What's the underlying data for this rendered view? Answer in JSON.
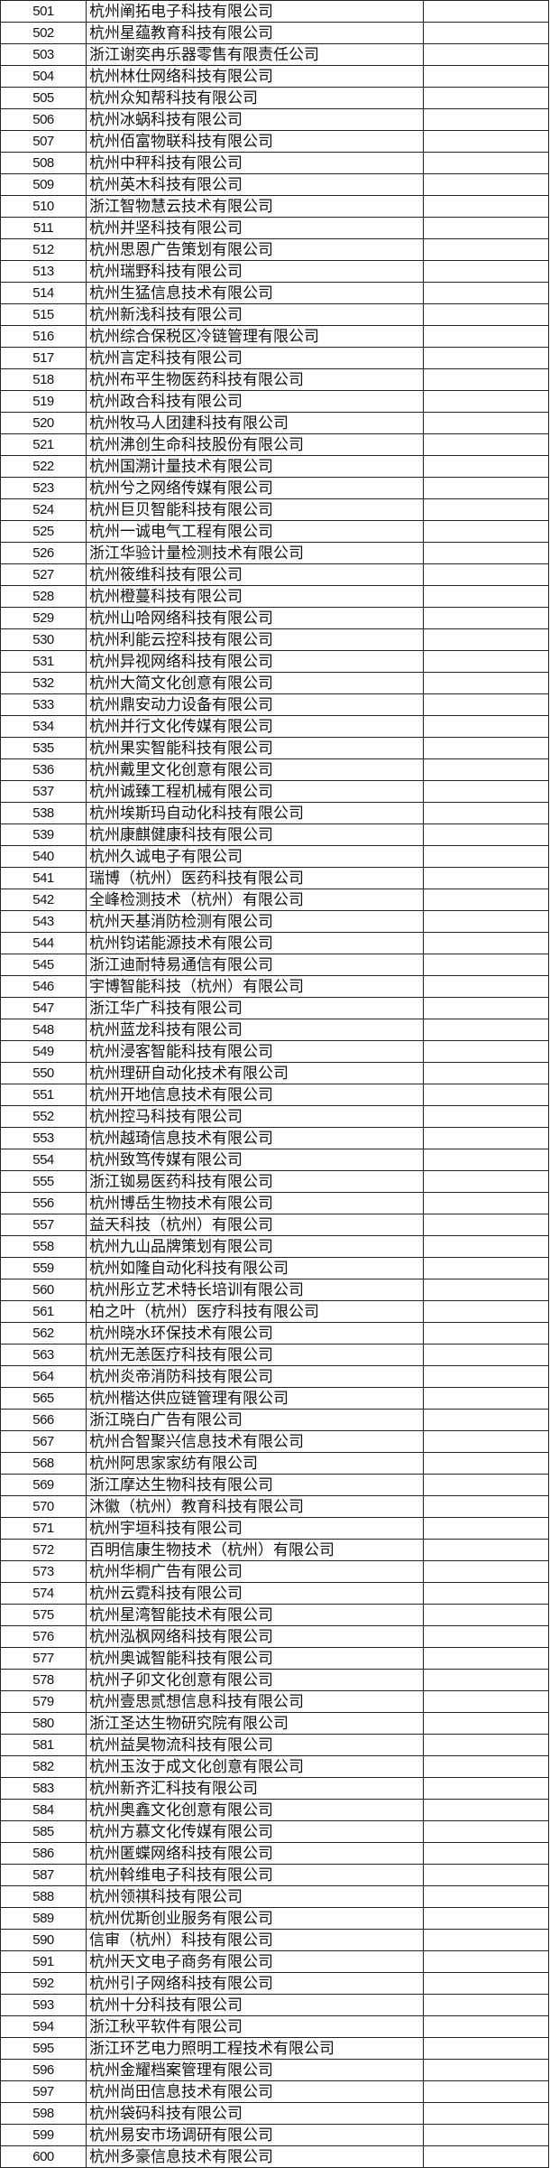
{
  "table": {
    "rows": [
      [
        "501",
        "杭州阐拓电子科技有限公司"
      ],
      [
        "502",
        "杭州星蕴教育科技有限公司"
      ],
      [
        "503",
        "浙江谢奕冉乐器零售有限责任公司"
      ],
      [
        "504",
        "杭州林仕网络科技有限公司"
      ],
      [
        "505",
        "杭州众知帮科技有限公司"
      ],
      [
        "506",
        "杭州冰蜗科技有限公司"
      ],
      [
        "507",
        "杭州佰富物联科技有限公司"
      ],
      [
        "508",
        "杭州中秤科技有限公司"
      ],
      [
        "509",
        "杭州英木科技有限公司"
      ],
      [
        "510",
        "浙江智物慧云技术有限公司"
      ],
      [
        "511",
        "杭州并坚科技有限公司"
      ],
      [
        "512",
        "杭州思恩广告策划有限公司"
      ],
      [
        "513",
        "杭州瑞野科技有限公司"
      ],
      [
        "514",
        "杭州生猛信息技术有限公司"
      ],
      [
        "515",
        "杭州新浅科技有限公司"
      ],
      [
        "516",
        "杭州综合保税区冷链管理有限公司"
      ],
      [
        "517",
        "杭州言定科技有限公司"
      ],
      [
        "518",
        "杭州布平生物医药科技有限公司"
      ],
      [
        "519",
        "杭州政合科技有限公司"
      ],
      [
        "520",
        "杭州牧马人团建科技有限公司"
      ],
      [
        "521",
        "杭州沸创生命科技股份有限公司"
      ],
      [
        "522",
        "杭州国溯计量技术有限公司"
      ],
      [
        "523",
        "杭州兮之网络传媒有限公司"
      ],
      [
        "524",
        "杭州巨贝智能科技有限公司"
      ],
      [
        "525",
        "杭州一诚电气工程有限公司"
      ],
      [
        "526",
        "浙江华验计量检测技术有限公司"
      ],
      [
        "527",
        "杭州筱维科技有限公司"
      ],
      [
        "528",
        "杭州橙蔓科技有限公司"
      ],
      [
        "529",
        "杭州山哈网络科技有限公司"
      ],
      [
        "530",
        "杭州利能云控科技有限公司"
      ],
      [
        "531",
        "杭州异视网络科技有限公司"
      ],
      [
        "532",
        "杭州大简文化创意有限公司"
      ],
      [
        "533",
        "杭州鼎安动力设备有限公司"
      ],
      [
        "534",
        "杭州并行文化传媒有限公司"
      ],
      [
        "535",
        "杭州果实智能科技有限公司"
      ],
      [
        "536",
        "杭州戴里文化创意有限公司"
      ],
      [
        "537",
        "杭州诚臻工程机械有限公司"
      ],
      [
        "538",
        "杭州埃斯玛自动化科技有限公司"
      ],
      [
        "539",
        "杭州康麒健康科技有限公司"
      ],
      [
        "540",
        "杭州久诚电子有限公司"
      ],
      [
        "541",
        "瑞博（杭州）医药科技有限公司"
      ],
      [
        "542",
        "全峰检测技术（杭州）有限公司"
      ],
      [
        "543",
        "杭州天基消防检测有限公司"
      ],
      [
        "544",
        "杭州钧诺能源技术有限公司"
      ],
      [
        "545",
        "浙江迪耐特易通信有限公司"
      ],
      [
        "546",
        "宇博智能科技（杭州）有限公司"
      ],
      [
        "547",
        "浙江华广科技有限公司"
      ],
      [
        "548",
        "杭州蓝龙科技有限公司"
      ],
      [
        "549",
        "杭州浸客智能科技有限公司"
      ],
      [
        "550",
        "杭州理研自动化技术有限公司"
      ],
      [
        "551",
        "杭州开地信息技术有限公司"
      ],
      [
        "552",
        "杭州控马科技有限公司"
      ],
      [
        "553",
        "杭州越琦信息技术有限公司"
      ],
      [
        "554",
        "杭州致笃传媒有限公司"
      ],
      [
        "555",
        "浙江铷易医药科技有限公司"
      ],
      [
        "556",
        "杭州博岳生物技术有限公司"
      ],
      [
        "557",
        "益天科技（杭州）有限公司"
      ],
      [
        "558",
        "杭州九山品牌策划有限公司"
      ],
      [
        "559",
        "杭州如隆自动化科技有限公司"
      ],
      [
        "560",
        "杭州彤立艺术特长培训有限公司"
      ],
      [
        "561",
        "柏之叶（杭州）医疗科技有限公司"
      ],
      [
        "562",
        "杭州晓水环保技术有限公司"
      ],
      [
        "563",
        "杭州无恙医疗科技有限公司"
      ],
      [
        "564",
        "杭州炎帝消防科技有限公司"
      ],
      [
        "565",
        "杭州楷达供应链管理有限公司"
      ],
      [
        "566",
        "浙江晓白广告有限公司"
      ],
      [
        "567",
        "杭州合智聚兴信息技术有限公司"
      ],
      [
        "568",
        "杭州阿思家家纺有限公司"
      ],
      [
        "569",
        "浙江摩达生物科技有限公司"
      ],
      [
        "570",
        "沐徽（杭州）教育科技有限公司"
      ],
      [
        "571",
        "杭州宇垣科技有限公司"
      ],
      [
        "572",
        "百明信康生物技术（杭州）有限公司"
      ],
      [
        "573",
        "杭州华桐广告有限公司"
      ],
      [
        "574",
        "杭州云霓科技有限公司"
      ],
      [
        "575",
        "杭州星湾智能技术有限公司"
      ],
      [
        "576",
        "杭州泓枫网络科技有限公司"
      ],
      [
        "577",
        "杭州奥诚智能科技有限公司"
      ],
      [
        "578",
        "杭州子卯文化创意有限公司"
      ],
      [
        "579",
        "杭州壹思贰想信息科技有限公司"
      ],
      [
        "580",
        "浙江圣达生物研究院有限公司"
      ],
      [
        "581",
        "杭州益昊物流科技有限公司"
      ],
      [
        "582",
        "杭州玉汝于成文化创意有限公司"
      ],
      [
        "583",
        "杭州新齐汇科技有限公司"
      ],
      [
        "584",
        "杭州奥鑫文化创意有限公司"
      ],
      [
        "585",
        "杭州方慕文化传媒有限公司"
      ],
      [
        "586",
        "杭州匿蝶网络科技有限公司"
      ],
      [
        "587",
        "杭州斡维电子科技有限公司"
      ],
      [
        "588",
        "杭州领祺科技有限公司"
      ],
      [
        "589",
        "杭州优斯创业服务有限公司"
      ],
      [
        "590",
        "信审（杭州）科技有限公司"
      ],
      [
        "591",
        "杭州天文电子商务有限公司"
      ],
      [
        "592",
        "杭州引子网络科技有限公司"
      ],
      [
        "593",
        "杭州十分科技有限公司"
      ],
      [
        "594",
        "浙江秋平软件有限公司"
      ],
      [
        "595",
        "浙江环艺电力照明工程技术有限公司"
      ],
      [
        "596",
        "杭州金耀档案管理有限公司"
      ],
      [
        "597",
        "杭州尚田信息技术有限公司"
      ],
      [
        "598",
        "杭州袋码科技有限公司"
      ],
      [
        "599",
        "杭州易安市场调研有限公司"
      ],
      [
        "600",
        "杭州多豪信息技术有限公司"
      ]
    ]
  }
}
